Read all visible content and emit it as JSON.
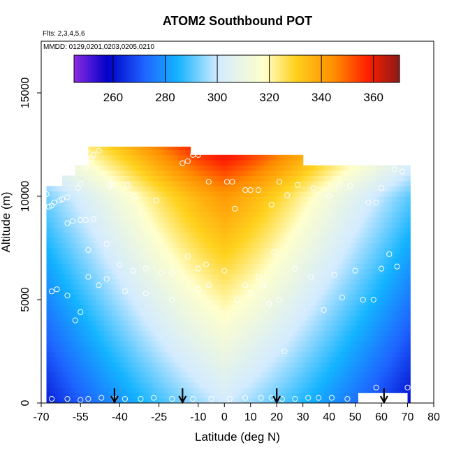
{
  "chart_data": {
    "type": "heatmap",
    "title": "ATOM2 Southbound POT",
    "subtitle_flights": "Flts: 2,3,4,5,6",
    "subtitle_dates": "MMDD: 0129,0201,0203,0205,0210",
    "xlabel": "Latitude (deg N)",
    "ylabel": "Altitude (m)",
    "xlim": [
      -70,
      80
    ],
    "ylim": [
      0,
      17500
    ],
    "x_ticks": [
      "-70",
      "-55",
      "-40",
      "-25",
      "-10",
      "0",
      "10",
      "20",
      "30",
      "40",
      "50",
      "60",
      "70",
      "80"
    ],
    "x_tick_values": [
      -70,
      -55,
      -40,
      -25,
      -10,
      0,
      10,
      20,
      30,
      40,
      50,
      60,
      70,
      80
    ],
    "y_ticks": [
      "0",
      "5000",
      "10000",
      "15000"
    ],
    "y_tick_values": [
      0,
      5000,
      10000,
      15000
    ],
    "colorbar": {
      "min": 245,
      "max": 370,
      "ticks": [
        "260",
        "280",
        "300",
        "320",
        "340",
        "360"
      ],
      "tick_values": [
        260,
        280,
        300,
        320,
        340,
        360
      ],
      "colors": [
        "#8a2be2",
        "#0000c8",
        "#1e64ff",
        "#14b4ff",
        "#d2ebff",
        "#ffffcc",
        "#ffd21e",
        "#ff8c00",
        "#ff1e00",
        "#8b1a1a"
      ],
      "color_stops": [
        245,
        258,
        272,
        285,
        300,
        318,
        330,
        345,
        358,
        370
      ]
    },
    "field_model": "potential temperature (K) versus latitude and altitude",
    "curtain_top_profile": [
      {
        "lat": -68,
        "alt": 10500
      },
      {
        "lat": -63,
        "alt": 11000
      },
      {
        "lat": -58,
        "alt": 11500
      },
      {
        "lat": -53,
        "alt": 12400
      },
      {
        "lat": -45,
        "alt": 12400
      },
      {
        "lat": -15,
        "alt": 12400
      },
      {
        "lat": -14,
        "alt": 12000
      },
      {
        "lat": 28,
        "alt": 12000
      },
      {
        "lat": 29,
        "alt": 11500
      },
      {
        "lat": 70,
        "alt": 11500
      },
      {
        "lat": 71,
        "alt": 10000
      }
    ],
    "arrows_lat": [
      -42,
      -16,
      20,
      61
    ],
    "sample_points": [
      [
        -68,
        10100
      ],
      [
        -67,
        9500
      ],
      [
        -66,
        9550
      ],
      [
        -65,
        9700
      ],
      [
        -63,
        9800
      ],
      [
        -62,
        9850
      ],
      [
        -60,
        9950
      ],
      [
        -56,
        10400
      ],
      [
        -55,
        10600
      ],
      [
        -53,
        11400
      ],
      [
        -51,
        11800
      ],
      [
        -50,
        12000
      ],
      [
        -48,
        12200
      ],
      [
        -44,
        10500
      ],
      [
        -43,
        10550
      ],
      [
        -37,
        10550
      ],
      [
        -34,
        10000
      ],
      [
        -26,
        9800
      ],
      [
        -16,
        11600
      ],
      [
        -14,
        11700
      ],
      [
        -12,
        12000
      ],
      [
        -10,
        12000
      ],
      [
        -6,
        10700
      ],
      [
        1,
        10700
      ],
      [
        3,
        10700
      ],
      [
        4,
        9400
      ],
      [
        8,
        10300
      ],
      [
        10,
        10300
      ],
      [
        13,
        10300
      ],
      [
        18,
        9600
      ],
      [
        21,
        10700
      ],
      [
        24,
        10050
      ],
      [
        28,
        10550
      ],
      [
        34,
        10400
      ],
      [
        40,
        10000
      ],
      [
        44,
        10500
      ],
      [
        48,
        10500
      ],
      [
        55,
        9700
      ],
      [
        58,
        9700
      ],
      [
        60,
        10400
      ],
      [
        65,
        11300
      ],
      [
        68,
        11200
      ],
      [
        -60,
        8700
      ],
      [
        -58,
        8800
      ],
      [
        -55,
        8850
      ],
      [
        -53,
        8850
      ],
      [
        -50,
        8900
      ],
      [
        -45,
        7700
      ],
      [
        -52,
        7400
      ],
      [
        -40,
        6700
      ],
      [
        -35,
        6400
      ],
      [
        -30,
        6500
      ],
      [
        -24,
        6300
      ],
      [
        -20,
        6300
      ],
      [
        -14,
        7100
      ],
      [
        -10,
        6500
      ],
      [
        -7,
        6700
      ],
      [
        -6,
        5700
      ],
      [
        0,
        6400
      ],
      [
        5,
        5000
      ],
      [
        8,
        5700
      ],
      [
        10,
        5300
      ],
      [
        13,
        6100
      ],
      [
        15,
        5700
      ],
      [
        17,
        4800
      ],
      [
        19,
        7300
      ],
      [
        21,
        5000
      ],
      [
        23,
        2500
      ],
      [
        27,
        6500
      ],
      [
        33,
        6100
      ],
      [
        38,
        4500
      ],
      [
        42,
        6200
      ],
      [
        45,
        5100
      ],
      [
        50,
        6400
      ],
      [
        53,
        5000
      ],
      [
        57,
        5000
      ],
      [
        60,
        6500
      ],
      [
        63,
        7200
      ],
      [
        66,
        6600
      ],
      [
        -66,
        5400
      ],
      [
        -64,
        5500
      ],
      [
        -60,
        5200
      ],
      [
        -57,
        4000
      ],
      [
        -55,
        4400
      ],
      [
        -52,
        6100
      ],
      [
        -48,
        5700
      ],
      [
        -45,
        6000
      ],
      [
        -38,
        5400
      ],
      [
        -30,
        5300
      ],
      [
        -20,
        5000
      ],
      [
        -10,
        5500
      ],
      [
        -66,
        200
      ],
      [
        -60,
        200
      ],
      [
        -55,
        150
      ],
      [
        -52,
        200
      ],
      [
        -47,
        250
      ],
      [
        -42,
        200
      ],
      [
        -38,
        200
      ],
      [
        -32,
        200
      ],
      [
        -27,
        250
      ],
      [
        -20,
        200
      ],
      [
        -12,
        200
      ],
      [
        -5,
        200
      ],
      [
        2,
        200
      ],
      [
        8,
        250
      ],
      [
        14,
        250
      ],
      [
        18,
        250
      ],
      [
        22,
        200
      ],
      [
        27,
        200
      ],
      [
        32,
        250
      ],
      [
        36,
        250
      ],
      [
        41,
        250
      ],
      [
        47,
        200
      ],
      [
        53,
        200
      ],
      [
        58,
        750
      ],
      [
        62,
        200
      ],
      [
        70,
        750
      ]
    ]
  }
}
